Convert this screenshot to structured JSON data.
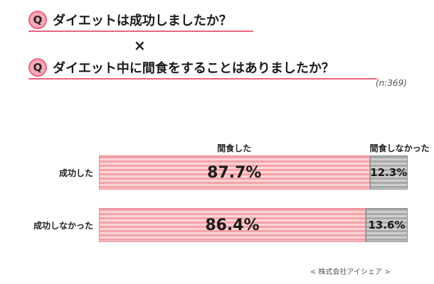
{
  "questions": {
    "q1": {
      "badge": "Q",
      "text": "ダイエットは成功しましたか？"
    },
    "times": "×",
    "q2": {
      "badge": "Q",
      "text": "ダイエット中に間食をすることはありましたか？"
    },
    "sample": "(n:369)"
  },
  "chart_data": {
    "type": "bar",
    "orientation": "horizontal-stacked-100",
    "categories": [
      "成功した",
      "成功しなかった"
    ],
    "series": [
      {
        "name": "間食した",
        "values": [
          87.7,
          86.4
        ],
        "labels": [
          "87.7%",
          "86.4%"
        ],
        "color": "#f5a3a8"
      },
      {
        "name": "間食しなかった",
        "values": [
          12.3,
          13.6
        ],
        "labels": [
          "12.3%",
          "13.6%"
        ],
        "color": "#a9a9a9"
      }
    ],
    "xlim": [
      0,
      100
    ],
    "unit": "%"
  },
  "credit": "< 株式会社アイシェア >"
}
